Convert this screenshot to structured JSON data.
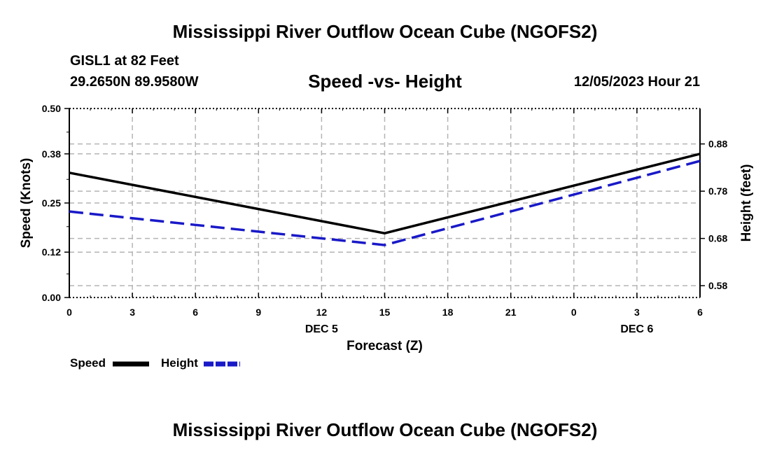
{
  "header": {
    "title": "Mississippi River Outflow Ocean Cube (NGOFS2)",
    "station": "GISL1 at 82 Feet",
    "coords": "29.2650N  89.9580W",
    "subtitle": "Speed -vs- Height",
    "datetime": "12/05/2023 Hour 21"
  },
  "footer": {
    "title": "Mississippi River Outflow Ocean Cube (NGOFS2)"
  },
  "chart_data": {
    "type": "line",
    "title": "Speed -vs- Height",
    "xlabel": "Forecast (Z)",
    "ylabel": "Speed (Knots)",
    "y2label": "Height (feet)",
    "x": [
      0,
      15,
      30
    ],
    "x_ticks": [
      "0",
      "3",
      "6",
      "9",
      "12",
      "15",
      "18",
      "21",
      "0",
      "3",
      "6"
    ],
    "x_date_labels": [
      {
        "label": "DEC 5",
        "at_x": 12
      },
      {
        "label": "DEC 6",
        "at_x": 27
      }
    ],
    "y_ticks": [
      "0.00",
      "0.12",
      "0.25",
      "0.38",
      "0.50"
    ],
    "ylim": [
      0,
      0.5
    ],
    "y2_ticks": [
      "0.58",
      "0.68",
      "0.78",
      "0.88"
    ],
    "y2lim": [
      0.555,
      0.955
    ],
    "grid": true,
    "series": [
      {
        "name": "Speed",
        "axis": "left",
        "color": "#000000",
        "dash": "solid",
        "x": [
          0,
          15,
          30
        ],
        "values": [
          0.33,
          0.17,
          0.38
        ]
      },
      {
        "name": "Height",
        "axis": "right",
        "color": "#1919c8",
        "dash": "dashed",
        "x": [
          0,
          15,
          30
        ],
        "values": [
          0.737,
          0.666,
          0.844
        ]
      }
    ],
    "legend": [
      {
        "label": "Speed",
        "color": "#000000",
        "dash": "solid"
      },
      {
        "label": "Height",
        "color": "#1919c8",
        "dash": "dashed"
      }
    ]
  }
}
